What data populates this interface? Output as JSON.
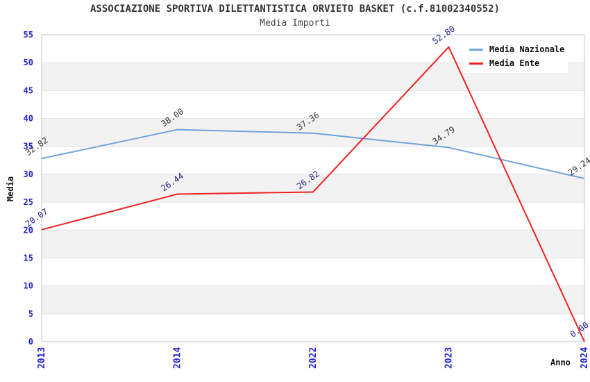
{
  "chart_data": {
    "type": "line",
    "title": "ASSOCIAZIONE SPORTIVA DILETTANTISTICA ORVIETO BASKET (c.f.81002340552)",
    "subtitle": "Media Importi",
    "xlabel": "Anno",
    "ylabel": "Media",
    "categories": [
      "2013",
      "2014",
      "2022",
      "2023",
      "2024"
    ],
    "series": [
      {
        "name": "Media Nazionale",
        "color": "#6fa3dc",
        "label_color": "#3a3a3a",
        "values": [
          32.82,
          38.0,
          37.36,
          34.79,
          29.24
        ]
      },
      {
        "name": "Media Ente",
        "color": "#f02020",
        "label_color": "#22228e",
        "values": [
          20.07,
          26.44,
          26.82,
          52.8,
          0.0
        ]
      }
    ],
    "ylim": [
      0,
      55
    ],
    "ytick_step": 5,
    "grid": true,
    "legend_position": "top-right",
    "colors": {
      "tick_label": "#2323d4",
      "band": "#f2f2f2",
      "grid": "#e3e3e3",
      "frame": "#c6c6c6"
    }
  }
}
